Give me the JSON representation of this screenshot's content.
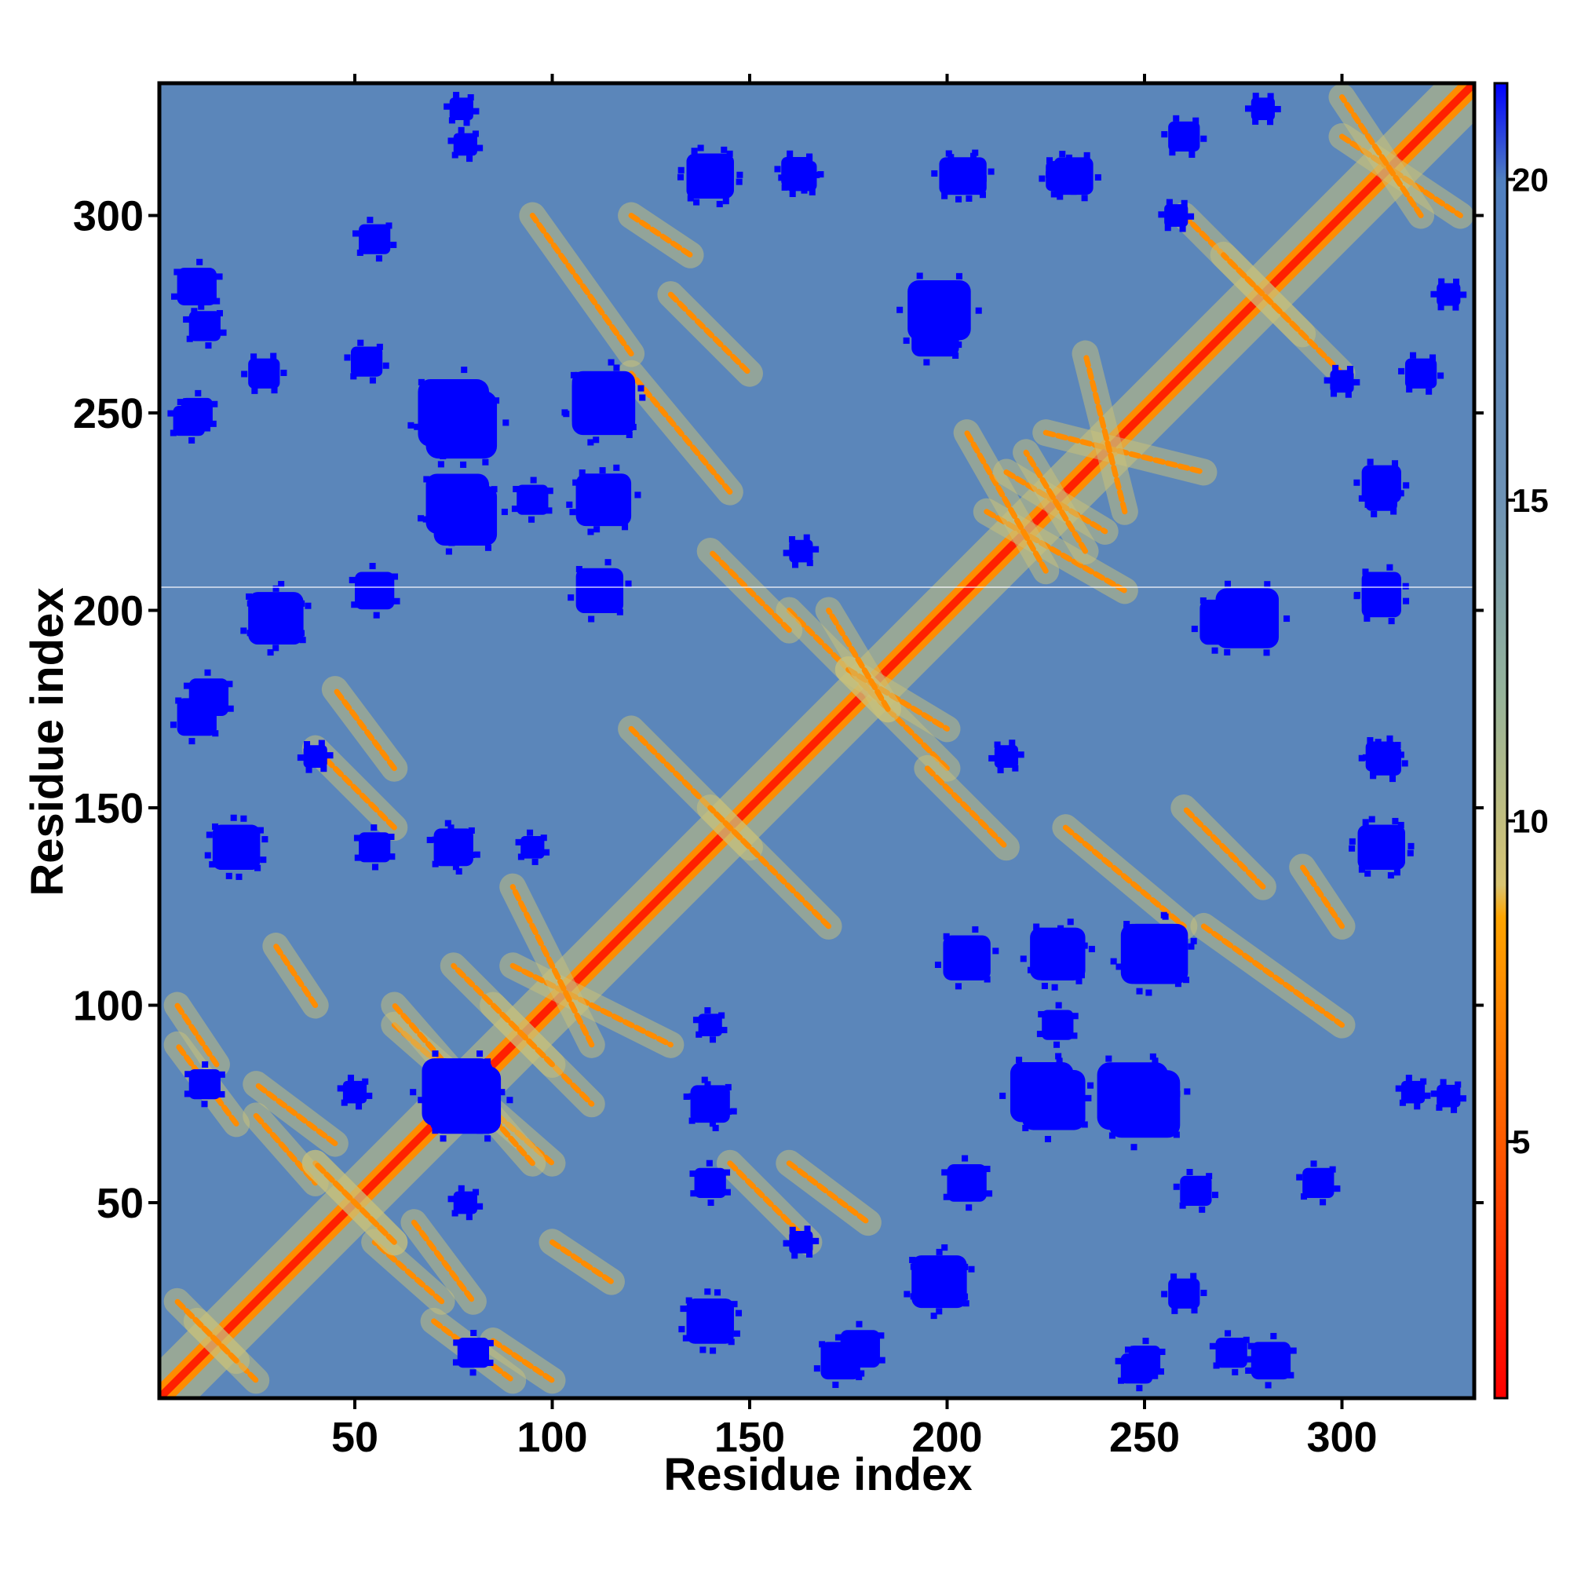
{
  "chart_data": {
    "type": "heatmap",
    "title": "",
    "xlabel": "Residue index",
    "ylabel": "Residue index",
    "x_range": [
      1,
      333
    ],
    "y_range": [
      1,
      333
    ],
    "x_ticks": [
      50,
      100,
      150,
      200,
      250,
      300
    ],
    "y_ticks": [
      50,
      100,
      150,
      200,
      250,
      300
    ],
    "colorbar": {
      "range": [
        1,
        21.5
      ],
      "ticks": [
        5,
        10,
        15,
        20
      ],
      "stops": [
        {
          "value": 1,
          "color": "#ff0000"
        },
        {
          "value": 5,
          "color": "#ff5a00"
        },
        {
          "value": 8.5,
          "color": "#ffa500"
        },
        {
          "value": 9,
          "color": "#d8c472"
        },
        {
          "value": 12,
          "color": "#95b39a"
        },
        {
          "value": 15,
          "color": "#6d92b5"
        },
        {
          "value": 20,
          "color": "#4f7fc0"
        },
        {
          "value": 21.5,
          "color": "#0000ff"
        }
      ]
    },
    "colors": {
      "diagonal": "#ff2000",
      "contact": "#ff8c00",
      "near": "#c9c27a",
      "background": "#5b86ba",
      "far": "#0000ff"
    },
    "far_clusters": [
      {
        "x": 76,
        "y": 78,
        "r": 9
      },
      {
        "x": 247,
        "y": 77,
        "r": 9
      },
      {
        "x": 224,
        "y": 78,
        "r": 8
      },
      {
        "x": 228,
        "y": 113,
        "r": 7
      },
      {
        "x": 252,
        "y": 113,
        "r": 8
      },
      {
        "x": 205,
        "y": 112,
        "r": 6
      },
      {
        "x": 75,
        "y": 250,
        "r": 9
      },
      {
        "x": 113,
        "y": 253,
        "r": 8
      },
      {
        "x": 76,
        "y": 227,
        "r": 8
      },
      {
        "x": 112,
        "y": 228,
        "r": 6
      },
      {
        "x": 95,
        "y": 228,
        "r": 4
      },
      {
        "x": 30,
        "y": 198,
        "r": 6
      },
      {
        "x": 13,
        "y": 178,
        "r": 5
      },
      {
        "x": 20,
        "y": 140,
        "r": 6
      },
      {
        "x": 8,
        "y": 248,
        "r": 4
      },
      {
        "x": 12,
        "y": 272,
        "r": 4
      },
      {
        "x": 55,
        "y": 294,
        "r": 4
      },
      {
        "x": 78,
        "y": 318,
        "r": 3
      },
      {
        "x": 140,
        "y": 310,
        "r": 6
      },
      {
        "x": 162,
        "y": 311,
        "r": 4
      },
      {
        "x": 203,
        "y": 310,
        "r": 5
      },
      {
        "x": 232,
        "y": 310,
        "r": 5
      },
      {
        "x": 198,
        "y": 276,
        "r": 8
      },
      {
        "x": 310,
        "y": 140,
        "r": 6
      },
      {
        "x": 310,
        "y": 163,
        "r": 4
      },
      {
        "x": 310,
        "y": 229,
        "r": 4
      },
      {
        "x": 310,
        "y": 205,
        "r": 5
      },
      {
        "x": 270,
        "y": 197,
        "r": 6
      },
      {
        "x": 140,
        "y": 20,
        "r": 6
      },
      {
        "x": 173,
        "y": 10,
        "r": 5
      },
      {
        "x": 198,
        "y": 30,
        "r": 7
      },
      {
        "x": 282,
        "y": 10,
        "r": 5
      },
      {
        "x": 250,
        "y": 10,
        "r": 4
      },
      {
        "x": 80,
        "y": 12,
        "r": 4
      },
      {
        "x": 140,
        "y": 55,
        "r": 4
      },
      {
        "x": 205,
        "y": 55,
        "r": 5
      },
      {
        "x": 75,
        "y": 140,
        "r": 4
      },
      {
        "x": 95,
        "y": 140,
        "r": 3
      },
      {
        "x": 140,
        "y": 75,
        "r": 5
      },
      {
        "x": 50,
        "y": 78,
        "r": 3
      },
      {
        "x": 263,
        "y": 53,
        "r": 4
      },
      {
        "x": 327,
        "y": 77,
        "r": 3
      },
      {
        "x": 320,
        "y": 260,
        "r": 4
      },
      {
        "x": 300,
        "y": 258,
        "r": 3
      },
      {
        "x": 327,
        "y": 280,
        "r": 3
      },
      {
        "x": 260,
        "y": 27,
        "r": 4
      },
      {
        "x": 40,
        "y": 163,
        "r": 3
      },
      {
        "x": 215,
        "y": 163,
        "r": 3
      }
    ]
  }
}
